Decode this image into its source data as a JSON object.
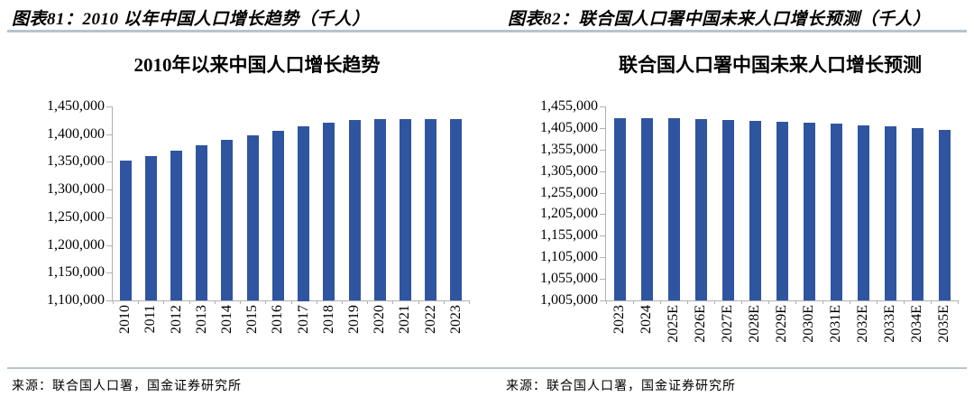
{
  "colors": {
    "bar": "#2F55A0",
    "rule": "#b7c4ce",
    "axis": "#b0b0b0",
    "text": "#000000"
  },
  "chart_data": [
    {
      "type": "bar",
      "header": "图表81：2010 以年中国人口增长趋势（千人）",
      "title": "2010年以来中国人口增长趋势",
      "unit": "千人",
      "categories": [
        "2010",
        "2011",
        "2012",
        "2013",
        "2014",
        "2015",
        "2016",
        "2017",
        "2018",
        "2019",
        "2020",
        "2021",
        "2022",
        "2023"
      ],
      "values": [
        1352000,
        1361000,
        1370000,
        1380000,
        1389000,
        1398000,
        1406000,
        1415000,
        1421000,
        1425000,
        1427000,
        1428000,
        1427500,
        1427000
      ],
      "ylim": [
        1100000,
        1450000
      ],
      "ytick_step": 50000,
      "ytick_labels": [
        "1,450,000",
        "1,400,000",
        "1,350,000",
        "1,300,000",
        "1,250,000",
        "1,200,000",
        "1,150,000",
        "1,100,000"
      ],
      "grid": false,
      "legend": "none",
      "xlabel_rotation": 90,
      "bar_color": "#2F55A0",
      "axis_color": "#b0b0b0",
      "source": "来源：联合国人口署，国金证券研究所"
    },
    {
      "type": "bar",
      "header": "图表82：联合国人口署中国未来人口增长预测（千人）",
      "title": "联合国人口署中国未来人口增长预测",
      "unit": "千人",
      "categories": [
        "2023",
        "2024",
        "2025E",
        "2026E",
        "2027E",
        "2028E",
        "2029E",
        "2030E",
        "2031E",
        "2032E",
        "2033E",
        "2034E",
        "2035E"
      ],
      "values": [
        1428000,
        1428000,
        1427000,
        1425500,
        1424000,
        1422000,
        1420000,
        1417500,
        1415000,
        1412000,
        1408500,
        1405500,
        1401500
      ],
      "ylim": [
        1005000,
        1455000
      ],
      "ytick_step": 50000,
      "ytick_labels": [
        "1,455,000",
        "1,405,000",
        "1,355,000",
        "1,305,000",
        "1,255,000",
        "1,205,000",
        "1,155,000",
        "1,105,000",
        "1,055,000",
        "1,005,000"
      ],
      "grid": false,
      "legend": "none",
      "xlabel_rotation": 90,
      "bar_color": "#2F55A0",
      "axis_color": "#b0b0b0",
      "source": "来源：联合国人口署，国金证券研究所"
    }
  ]
}
